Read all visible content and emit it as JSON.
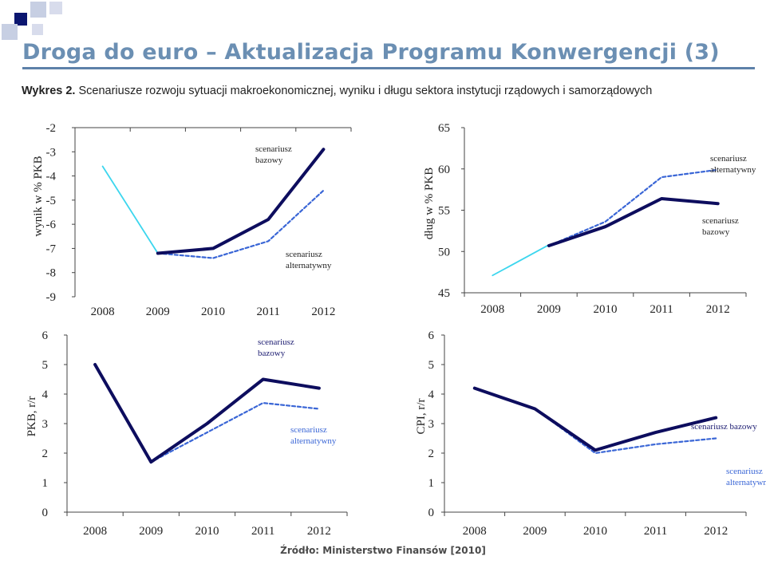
{
  "header": {
    "title": "Droga do euro – Aktualizacja Programu Konwergencji (3)",
    "subtitle_prefix": "Wykres 2.",
    "subtitle": " Scenariusze rozwoju sytuacji makroekonomicznej, wyniku i długu sektora instytucji rządowych i samorządowych"
  },
  "footer": {
    "source": "Źródło: Ministerstwo Finansów [2010]"
  },
  "colors": {
    "title": "#6b8fb3",
    "base": "#0d0d5e",
    "alt": "#3a66d6",
    "history": "#3cd6ee",
    "accent": "#1a1a70"
  },
  "chart_data": [
    {
      "type": "line",
      "ylabel": "wynik w % PKB",
      "x": [
        "2008",
        "2009",
        "2010",
        "2011",
        "2012"
      ],
      "ylim": [
        -9,
        -2
      ],
      "yticks": [
        -2,
        -3,
        -4,
        -5,
        -6,
        -7,
        -8,
        -9
      ],
      "series": [
        {
          "name": "",
          "style": "history",
          "x": [
            "2008",
            "2009"
          ],
          "values": [
            -3.6,
            -7.2
          ]
        },
        {
          "name": "scenariusz bazowy",
          "style": "base",
          "x": [
            "2009",
            "2010",
            "2011",
            "2012"
          ],
          "values": [
            -7.2,
            -7.0,
            -5.8,
            -2.9
          ]
        },
        {
          "name": "scenariusz alternatywny",
          "style": "alt",
          "x": [
            "2009",
            "2010",
            "2011",
            "2012"
          ],
          "values": [
            -7.2,
            -7.4,
            -6.7,
            -4.6
          ]
        }
      ],
      "annotations": [
        {
          "lines": [
            "scenariusz",
            "bazowy"
          ],
          "color": "#222"
        },
        {
          "lines": [
            "scenariusz",
            "alternatywny"
          ],
          "color": "#222"
        }
      ]
    },
    {
      "type": "line",
      "ylabel": "dług w % PKB",
      "x": [
        "2008",
        "2009",
        "2010",
        "2011",
        "2012"
      ],
      "ylim": [
        45,
        65
      ],
      "yticks": [
        65,
        60,
        55,
        50,
        45
      ],
      "series": [
        {
          "name": "",
          "style": "history",
          "x": [
            "2008",
            "2009"
          ],
          "values": [
            47.1,
            50.8
          ]
        },
        {
          "name": "scenariusz bazowy",
          "style": "base",
          "x": [
            "2009",
            "2010",
            "2011",
            "2012"
          ],
          "values": [
            50.7,
            53.0,
            56.4,
            55.8
          ]
        },
        {
          "name": "scenariusz alternatywny",
          "style": "alt",
          "x": [
            "2009",
            "2010",
            "2011",
            "2012"
          ],
          "values": [
            50.7,
            53.6,
            59.0,
            59.9
          ]
        }
      ],
      "annotations": [
        {
          "lines": [
            "scenariusz",
            "alternatywny"
          ],
          "color": "#222"
        },
        {
          "lines": [
            "scenariusz",
            "bazowy"
          ],
          "color": "#222"
        }
      ]
    },
    {
      "type": "line",
      "ylabel": "PKB, r/r",
      "x": [
        "2008",
        "2009",
        "2010",
        "2011",
        "2012"
      ],
      "ylim": [
        0,
        6
      ],
      "yticks": [
        6,
        5,
        4,
        3,
        2,
        1,
        0
      ],
      "series": [
        {
          "name": "scenariusz bazowy",
          "style": "base",
          "x": [
            "2008",
            "2009",
            "2010",
            "2011",
            "2012"
          ],
          "values": [
            5.0,
            1.7,
            3.0,
            4.5,
            4.2
          ]
        },
        {
          "name": "scenariusz alternatywny",
          "style": "alt",
          "x": [
            "2008",
            "2009",
            "2010",
            "2011",
            "2012"
          ],
          "values": [
            5.0,
            1.7,
            2.7,
            3.7,
            3.5
          ]
        }
      ],
      "annotations": [
        {
          "lines": [
            "scenariusz",
            "bazowy"
          ],
          "color": "#1a1a70"
        },
        {
          "lines": [
            "scenariusz",
            "alternatywny"
          ],
          "color": "#3a66d6"
        }
      ]
    },
    {
      "type": "line",
      "ylabel": "CPI, r/r",
      "x": [
        "2008",
        "2009",
        "2010",
        "2011",
        "2012"
      ],
      "ylim": [
        0,
        6
      ],
      "yticks": [
        6,
        5,
        4,
        3,
        2,
        1,
        0
      ],
      "series": [
        {
          "name": "scenariusz bazowy",
          "style": "base",
          "x": [
            "2008",
            "2009",
            "2010",
            "2011",
            "2012"
          ],
          "values": [
            4.2,
            3.5,
            2.1,
            2.7,
            3.2
          ]
        },
        {
          "name": "scenariusz alternatywny",
          "style": "alt",
          "x": [
            "2008",
            "2009",
            "2010",
            "2011",
            "2012"
          ],
          "values": [
            4.2,
            3.5,
            2.0,
            2.3,
            2.5
          ]
        }
      ],
      "annotations": [
        {
          "lines": [
            "scenariusz bazowy"
          ],
          "color": "#1a1a70"
        },
        {
          "lines": [
            "scenariusz",
            "alternatywny"
          ],
          "color": "#3a66d6"
        }
      ]
    }
  ]
}
